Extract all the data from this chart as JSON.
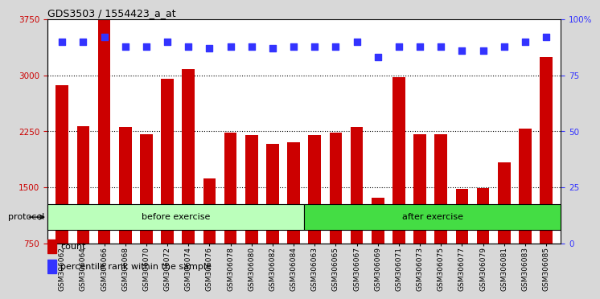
{
  "title": "GDS3503 / 1554423_a_at",
  "samples": [
    "GSM306062",
    "GSM306064",
    "GSM306066",
    "GSM306068",
    "GSM306070",
    "GSM306072",
    "GSM306074",
    "GSM306076",
    "GSM306078",
    "GSM306080",
    "GSM306082",
    "GSM306084",
    "GSM306063",
    "GSM306065",
    "GSM306067",
    "GSM306069",
    "GSM306071",
    "GSM306073",
    "GSM306075",
    "GSM306077",
    "GSM306079",
    "GSM306081",
    "GSM306083",
    "GSM306085"
  ],
  "counts": [
    2870,
    2320,
    3740,
    2310,
    2210,
    2950,
    3080,
    1620,
    2230,
    2200,
    2080,
    2100,
    2200,
    2230,
    2310,
    1360,
    2980,
    2210,
    2210,
    1480,
    1490,
    1840,
    2290,
    3250
  ],
  "percentiles": [
    90,
    90,
    92,
    88,
    88,
    90,
    88,
    87,
    88,
    88,
    87,
    88,
    88,
    88,
    90,
    83,
    88,
    88,
    88,
    86,
    86,
    88,
    90,
    92
  ],
  "before_count": 12,
  "after_count": 12,
  "before_label": "before exercise",
  "after_label": "after exercise",
  "protocol_label": "protocol",
  "bar_color": "#cc0000",
  "dot_color": "#3333ff",
  "ylim_left": [
    750,
    3750
  ],
  "ylim_right": [
    0,
    100
  ],
  "yticks_left": [
    750,
    1500,
    2250,
    3000,
    3750
  ],
  "yticks_right": [
    0,
    25,
    50,
    75,
    100
  ],
  "grid_values": [
    3000,
    2250,
    1500
  ],
  "before_color": "#bbffbb",
  "after_color": "#44dd44",
  "legend_count_label": "count",
  "legend_pct_label": "percentile rank within the sample",
  "background_color": "#d8d8d8",
  "plot_bg_color": "#ffffff",
  "dot_size": 35,
  "dot_marker": "s"
}
